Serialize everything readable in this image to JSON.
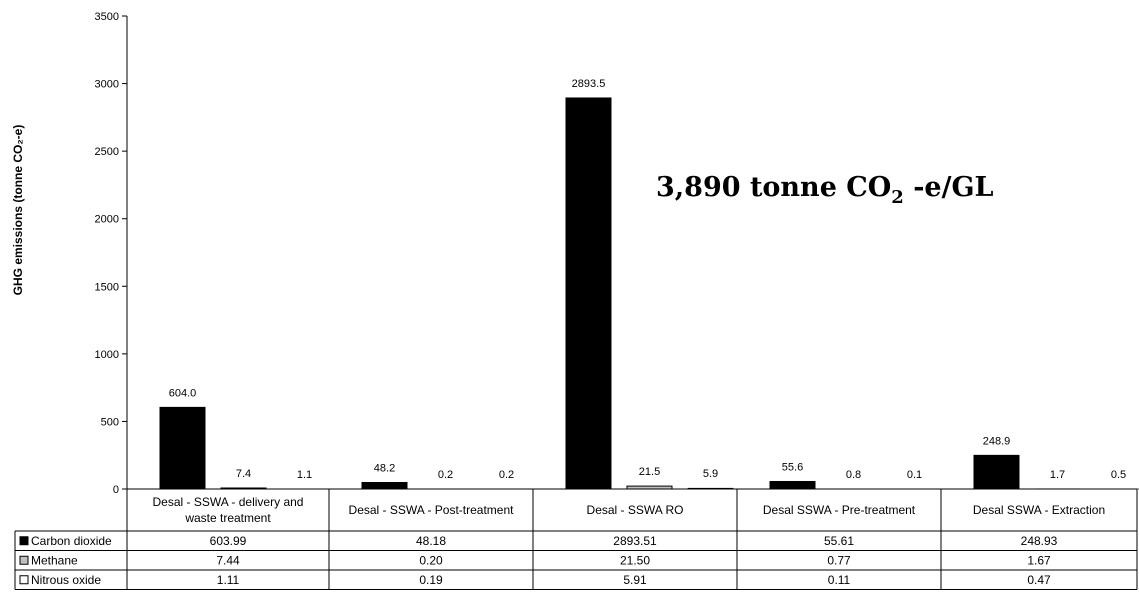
{
  "chart_data": {
    "type": "bar",
    "title": "",
    "xlabel": "",
    "ylabel": "GHG emissions (tonne CO₂-e)",
    "ylim": [
      0,
      3500
    ],
    "yticks": [
      0,
      500,
      1000,
      1500,
      2000,
      2500,
      3000,
      3500
    ],
    "grid": false,
    "legend": "table-left",
    "categories": [
      "Desal - SSWA - delivery and waste treatment",
      "Desal - SSWA - Post-treatment",
      "Desal - SSWA RO",
      "Desal SSWA - Pre-treatment",
      "Desal SSWA - Extraction"
    ],
    "series": [
      {
        "name": "Carbon dioxide",
        "color": "#000000",
        "values": [
          603.99,
          48.18,
          2893.51,
          55.61,
          248.93
        ],
        "bar_labels": [
          "604.0",
          "48.2",
          "2893.5",
          "55.6",
          "248.9"
        ],
        "table_values": [
          "603.99",
          "48.18",
          "2893.51",
          "55.61",
          "248.93"
        ]
      },
      {
        "name": "Methane",
        "color": "#c0c0c0",
        "values": [
          7.44,
          0.2,
          21.5,
          0.77,
          1.67
        ],
        "bar_labels": [
          "7.4",
          "0.2",
          "21.5",
          "0.8",
          "1.7"
        ],
        "table_values": [
          "7.44",
          "0.20",
          "21.50",
          "0.77",
          "1.67"
        ]
      },
      {
        "name": "Nitrous oxide",
        "color": "#ffffff",
        "values": [
          1.11,
          0.19,
          5.91,
          0.11,
          0.47
        ],
        "bar_labels": [
          "1.1",
          "0.2",
          "5.9",
          "0.1",
          "0.5"
        ],
        "table_values": [
          "1.11",
          "0.19",
          "5.91",
          "0.11",
          "0.47"
        ]
      }
    ],
    "annotation": {
      "prefix": "3,890 tonne CO",
      "subscript": "2",
      "suffix": " -e/GL"
    }
  }
}
